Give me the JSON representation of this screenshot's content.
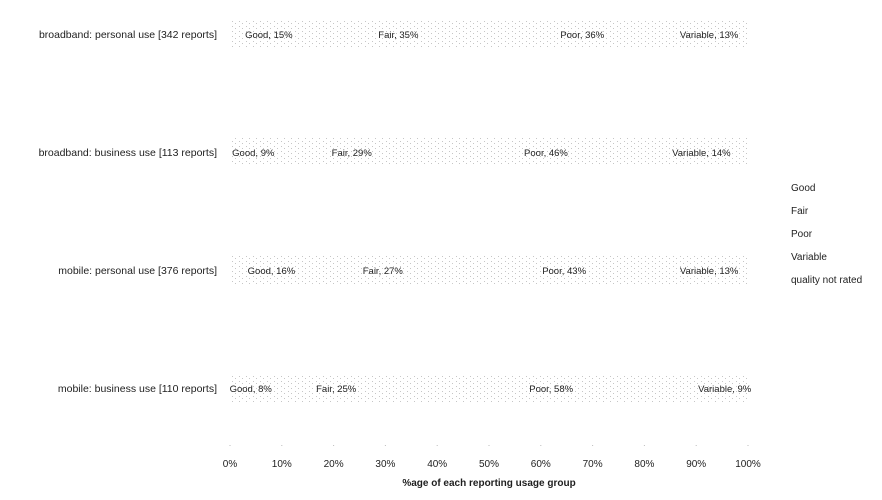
{
  "chart_data": {
    "type": "bar",
    "orientation": "horizontal",
    "stacked": true,
    "categories": [
      "broadband: personal use [342 reports]",
      "broadband: business use [113 reports]",
      "mobile: personal use [376 reports]",
      "mobile: business use [110 reports]"
    ],
    "series": [
      {
        "name": "Good",
        "values": [
          15,
          9,
          16,
          8
        ]
      },
      {
        "name": "Fair",
        "values": [
          35,
          29,
          27,
          25
        ]
      },
      {
        "name": "Poor",
        "values": [
          36,
          46,
          43,
          58
        ]
      },
      {
        "name": "Variable",
        "values": [
          13,
          14,
          13,
          9
        ]
      },
      {
        "name": "quality not rated",
        "values": [
          1,
          2,
          1,
          0
        ]
      }
    ],
    "data_labels": [
      [
        "Good, 15%",
        "Fair, 35%",
        "Poor, 36%",
        "Variable, 13%"
      ],
      [
        "Good, 9%",
        "Fair, 29%",
        "Poor, 46%",
        "Variable, 14%"
      ],
      [
        "Good, 16%",
        "Fair, 27%",
        "Poor, 43%",
        "Variable, 13%"
      ],
      [
        "Good, 8%",
        "Fair, 25%",
        "Poor, 58%",
        "Variable, 9%"
      ]
    ],
    "x_ticks": [
      "0%",
      "10%",
      "20%",
      "30%",
      "40%",
      "50%",
      "60%",
      "70%",
      "80%",
      "90%",
      "100%"
    ],
    "xlim": [
      0,
      100
    ],
    "xlabel": "%age of each reporting usage group",
    "ylabel": "",
    "title": "",
    "legend": [
      "Good",
      "Fair",
      "Poor",
      "Variable",
      "quality not rated"
    ],
    "legend_position": "right",
    "grid": false
  }
}
